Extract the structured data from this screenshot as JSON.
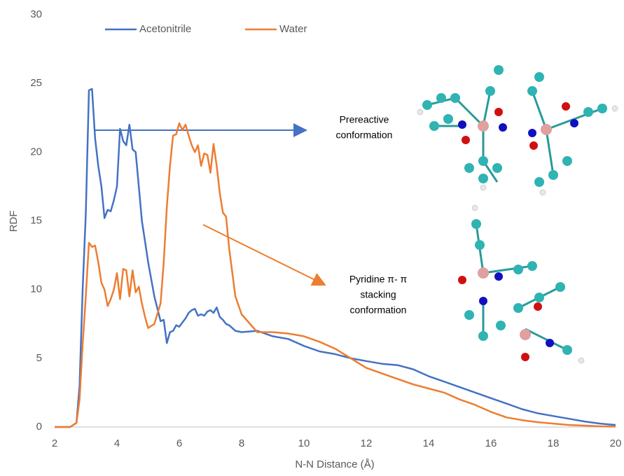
{
  "chart_data": {
    "type": "line",
    "x_label": "N-N Distance (Å)",
    "y_label": "RDF",
    "x": [
      2,
      2.5,
      2.7,
      2.8,
      2.9,
      3.0,
      3.1,
      3.2,
      3.3,
      3.4,
      3.5,
      3.6,
      3.7,
      3.8,
      3.9,
      4.0,
      4.1,
      4.2,
      4.3,
      4.4,
      4.5,
      4.6,
      4.7,
      4.8,
      4.9,
      5.0,
      5.2,
      5.4,
      5.5,
      5.6,
      5.7,
      5.8,
      5.9,
      6.0,
      6.1,
      6.2,
      6.3,
      6.4,
      6.5,
      6.6,
      6.7,
      6.8,
      6.9,
      7.0,
      7.1,
      7.2,
      7.3,
      7.4,
      7.5,
      7.6,
      7.8,
      8.0,
      8.5,
      9,
      9.5,
      10,
      10.5,
      11,
      11.5,
      12,
      12.5,
      13,
      13.5,
      14,
      14.5,
      15,
      15.5,
      16,
      16.5,
      17,
      17.5,
      18,
      18.5,
      19,
      19.5,
      20
    ],
    "series": [
      {
        "name": "Acetonitrile",
        "color": "#4472c4",
        "values": [
          0,
          0,
          0.3,
          3,
          10,
          15.5,
          24.5,
          24.6,
          21,
          19,
          17.5,
          15.2,
          15.8,
          15.7,
          16.5,
          17.5,
          21.7,
          20.8,
          20.5,
          22,
          20.2,
          20,
          17.5,
          15,
          13.5,
          12,
          9.5,
          7.7,
          7.8,
          6.1,
          6.9,
          7,
          7.4,
          7.3,
          7.6,
          7.9,
          8.3,
          8.5,
          8.6,
          8.1,
          8.2,
          8.1,
          8.4,
          8.5,
          8.3,
          8.7,
          8.0,
          7.8,
          7.5,
          7.4,
          7.0,
          6.9,
          7.0,
          6.6,
          6.4,
          5.9,
          5.5,
          5.3,
          5.0,
          4.8,
          4.6,
          4.5,
          4.2,
          3.7,
          3.3,
          2.9,
          2.5,
          2.1,
          1.7,
          1.3,
          1.0,
          0.8,
          0.6,
          0.4,
          0.25,
          0.15
        ]
      },
      {
        "name": "Water",
        "color": "#ed7d31",
        "values": [
          0,
          0,
          0.3,
          2,
          6,
          9.5,
          13.4,
          13.1,
          13.2,
          12,
          10.5,
          10,
          8.8,
          9.3,
          10,
          11.2,
          9.3,
          11.5,
          11.4,
          9.5,
          11.4,
          9.8,
          10.2,
          9,
          8,
          7.2,
          7.5,
          9,
          12,
          16,
          19,
          21.2,
          21.3,
          22.1,
          21.6,
          22,
          21.2,
          20.5,
          20,
          20.5,
          19,
          19.9,
          19.8,
          18.5,
          20.6,
          19,
          17,
          15.6,
          15.3,
          13,
          9.5,
          8.2,
          6.9,
          6.9,
          6.8,
          6.6,
          6.2,
          5.7,
          5.0,
          4.3,
          3.9,
          3.5,
          3.1,
          2.8,
          2.5,
          2.0,
          1.6,
          1.1,
          0.7,
          0.5,
          0.35,
          0.25,
          0.15,
          0.1,
          0.05,
          0.03
        ]
      }
    ],
    "xlim": [
      2,
      20
    ],
    "xticks": [
      2,
      4,
      6,
      8,
      10,
      12,
      14,
      16,
      18,
      20
    ],
    "ylim": [
      0,
      30
    ],
    "yticks": [
      0,
      5,
      10,
      15,
      20,
      25,
      30
    ],
    "grid": false,
    "legend": "top",
    "annotations": [
      {
        "lines": [
          "Prereactive",
          "conformation"
        ],
        "color": "#4472c4"
      },
      {
        "lines": [
          "Pyridine π- π",
          "stacking",
          "conformation"
        ],
        "color": "#ed7d31"
      }
    ]
  }
}
